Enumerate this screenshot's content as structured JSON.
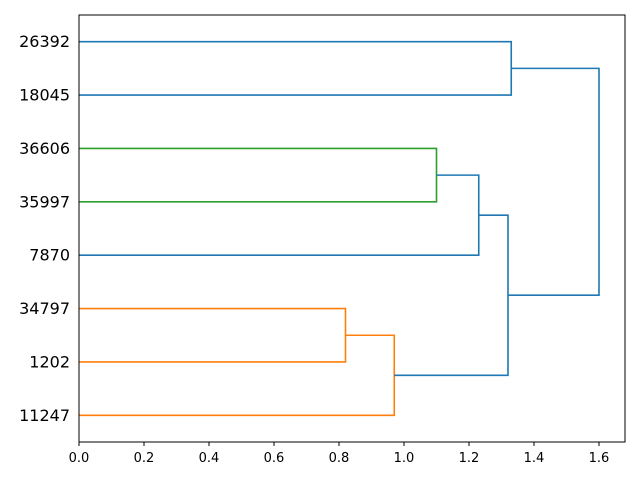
{
  "figure": {
    "background": "#ffffff",
    "spine_color": "#000000",
    "text_color": "#000000"
  },
  "chart_data": {
    "type": "dendrogram",
    "orientation": "right",
    "title": "",
    "xlabel": "",
    "ylabel": "",
    "grid": false,
    "legend": false,
    "xlim": [
      0,
      1.68
    ],
    "x_ticks": [
      "0.0",
      "0.2",
      "0.4",
      "0.6",
      "0.8",
      "1.0",
      "1.2",
      "1.4",
      "1.6"
    ],
    "x_tick_values": [
      0.0,
      0.2,
      0.4,
      0.6,
      0.8,
      1.0,
      1.2,
      1.4,
      1.6
    ],
    "leaves": [
      "26392",
      "18045",
      "36606",
      "35997",
      "7870",
      "34797",
      "1202",
      "11247"
    ],
    "merges": [
      {
        "id": "M0",
        "a": "L0",
        "b": "L1",
        "distance": 1.33,
        "color_key": "blue",
        "description": "26392 + 18045"
      },
      {
        "id": "M1",
        "a": "L2",
        "b": "L3",
        "distance": 1.1,
        "color_key": "green",
        "description": "36606 + 35997"
      },
      {
        "id": "M2",
        "a": "M1",
        "b": "L4",
        "distance": 1.23,
        "color_key": "blue",
        "description": "(36606,35997) + 7870"
      },
      {
        "id": "M3",
        "a": "L5",
        "b": "L6",
        "distance": 0.82,
        "color_key": "orange",
        "description": "34797 + 1202"
      },
      {
        "id": "M4",
        "a": "M3",
        "b": "L7",
        "distance": 0.97,
        "color_key": "orange",
        "description": "(34797,1202) + 11247"
      },
      {
        "id": "M5",
        "a": "M2",
        "b": "M4",
        "distance": 1.32,
        "color_key": "blue",
        "description": "(36606,35997,7870) + (34797,1202,11247)"
      },
      {
        "id": "M6",
        "a": "M0",
        "b": "M5",
        "distance": 1.6,
        "color_key": "blue",
        "description": "root: (26392,18045) + rest"
      }
    ],
    "colors": {
      "blue": "#1f77b4",
      "orange": "#ff7f0e",
      "green": "#2ca02c"
    },
    "line_width": 1.6
  }
}
